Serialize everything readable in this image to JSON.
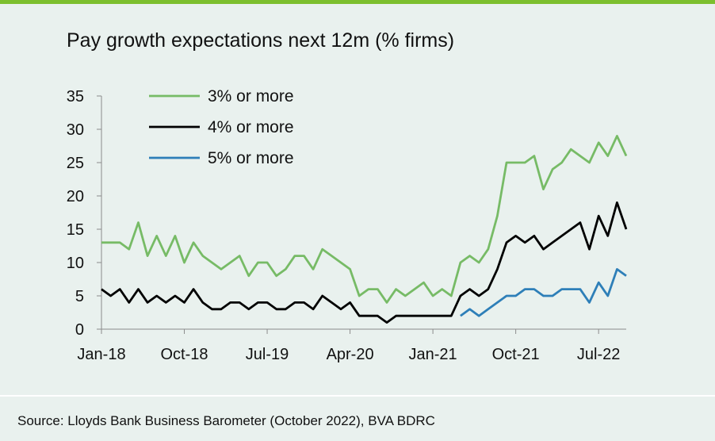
{
  "chart_data": {
    "type": "line",
    "title": "Pay growth expectations next 12m (% firms)",
    "xlabel": "",
    "ylabel": "",
    "ylim": [
      0,
      35
    ],
    "yticks": [
      0,
      5,
      10,
      15,
      20,
      25,
      30,
      35
    ],
    "x_tick_labels": [
      "Jan-18",
      "Oct-18",
      "Jul-19",
      "Apr-20",
      "Jan-21",
      "Oct-21",
      "Jul-22"
    ],
    "x_tick_index": [
      0,
      9,
      18,
      27,
      36,
      45,
      54
    ],
    "grid": false,
    "legend_position": "top-left",
    "x": [
      "Jan-18",
      "Feb-18",
      "Mar-18",
      "Apr-18",
      "May-18",
      "Jun-18",
      "Jul-18",
      "Aug-18",
      "Sep-18",
      "Oct-18",
      "Nov-18",
      "Dec-18",
      "Jan-19",
      "Feb-19",
      "Mar-19",
      "Apr-19",
      "May-19",
      "Jun-19",
      "Jul-19",
      "Aug-19",
      "Sep-19",
      "Oct-19",
      "Nov-19",
      "Dec-19",
      "Jan-20",
      "Feb-20",
      "Mar-20",
      "Apr-20",
      "May-20",
      "Jun-20",
      "Jul-20",
      "Aug-20",
      "Sep-20",
      "Oct-20",
      "Nov-20",
      "Dec-20",
      "Jan-21",
      "Feb-21",
      "Mar-21",
      "Apr-21",
      "May-21",
      "Jun-21",
      "Jul-21",
      "Aug-21",
      "Sep-21",
      "Oct-21",
      "Nov-21",
      "Dec-21",
      "Jan-22",
      "Feb-22",
      "Mar-22",
      "Apr-22",
      "May-22",
      "Jun-22",
      "Jul-22",
      "Aug-22",
      "Sep-22",
      "Oct-22"
    ],
    "series": [
      {
        "name": "3% or more",
        "color": "#77bb66",
        "values": [
          13,
          13,
          13,
          12,
          16,
          11,
          14,
          11,
          14,
          10,
          13,
          11,
          10,
          9,
          10,
          11,
          8,
          10,
          10,
          8,
          9,
          11,
          11,
          9,
          12,
          11,
          10,
          9,
          5,
          6,
          6,
          4,
          6,
          5,
          6,
          7,
          5,
          6,
          5,
          10,
          11,
          10,
          12,
          17,
          25,
          25,
          25,
          26,
          21,
          24,
          25,
          27,
          26,
          25,
          28,
          26,
          29,
          26
        ]
      },
      {
        "name": "4% or more",
        "color": "#000000",
        "values": [
          6,
          5,
          6,
          4,
          6,
          4,
          5,
          4,
          5,
          4,
          6,
          4,
          3,
          3,
          4,
          4,
          3,
          4,
          4,
          3,
          3,
          4,
          4,
          3,
          5,
          4,
          3,
          4,
          2,
          2,
          2,
          1,
          2,
          2,
          2,
          2,
          2,
          2,
          2,
          5,
          6,
          5,
          6,
          9,
          13,
          14,
          13,
          14,
          12,
          13,
          14,
          15,
          16,
          12,
          17,
          14,
          19,
          15
        ]
      },
      {
        "name": "5% or more",
        "color": "#2e7fb8",
        "values": [
          null,
          null,
          null,
          null,
          null,
          null,
          null,
          null,
          null,
          null,
          null,
          null,
          null,
          null,
          null,
          null,
          null,
          null,
          null,
          null,
          null,
          null,
          null,
          null,
          null,
          null,
          null,
          null,
          null,
          null,
          null,
          null,
          null,
          null,
          null,
          null,
          null,
          null,
          null,
          2,
          3,
          2,
          3,
          4,
          5,
          5,
          6,
          6,
          5,
          5,
          6,
          6,
          6,
          4,
          7,
          5,
          9,
          8
        ]
      }
    ]
  },
  "source": "Source: Lloyds Bank Business Barometer (October 2022), BVA BDRC"
}
